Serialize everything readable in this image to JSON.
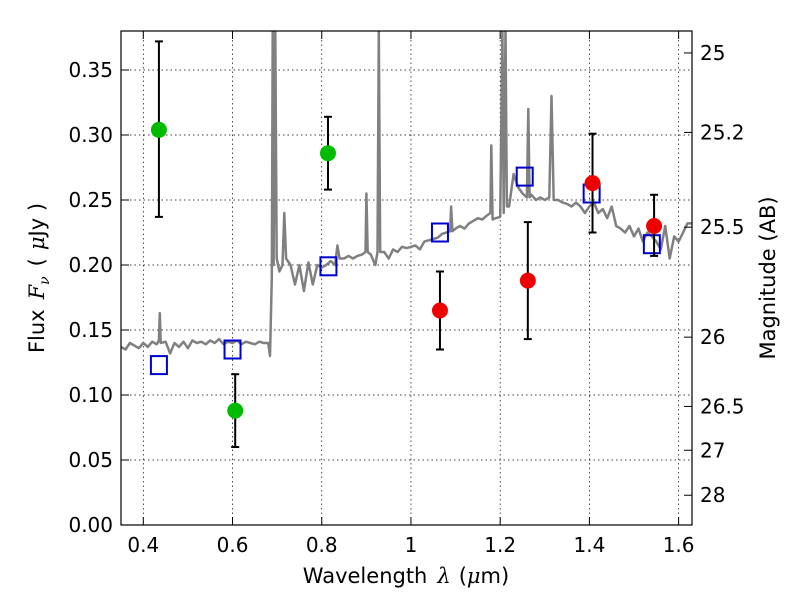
{
  "chart_data": {
    "type": "scatter",
    "title": "",
    "xlabel": {
      "prefix": "Wavelength",
      "math": "λ",
      "suffix": "(",
      "unit_math": "μ",
      "unit": "m)"
    },
    "ylabel": {
      "prefix": "Flux",
      "math": "F",
      "math_sub": "ν",
      "suffix": "(",
      "unit_math": "μ",
      "unit": "Jy )"
    },
    "y2label": "Magnitude (AB)",
    "xlim": [
      0.35,
      1.63
    ],
    "ylim": [
      0.0,
      0.38
    ],
    "grid": true,
    "grid_style": "dotted",
    "x_ticks": [
      0.4,
      0.6,
      0.8,
      1.0,
      1.2,
      1.4,
      1.6
    ],
    "x_tick_labels": [
      "0.4",
      "0.6",
      "0.8",
      "1",
      "1.2",
      "1.4",
      "1.6"
    ],
    "y_ticks": [
      0.0,
      0.05,
      0.1,
      0.15,
      0.2,
      0.25,
      0.3,
      0.35
    ],
    "y_tick_labels": [
      "0.00",
      "0.05",
      "0.10",
      "0.15",
      "0.20",
      "0.25",
      "0.30",
      "0.35"
    ],
    "y2_ticks": [
      {
        "label": "25",
        "flux": 0.3631
      },
      {
        "label": "25.2",
        "flux": 0.302
      },
      {
        "label": "25.5",
        "flux": 0.2291
      },
      {
        "label": "26",
        "flux": 0.1445
      },
      {
        "label": "26.5",
        "flux": 0.0912
      },
      {
        "label": "27",
        "flux": 0.0575
      },
      {
        "label": "28",
        "flux": 0.0229
      }
    ],
    "colors": {
      "spectrum": "#808080",
      "green": "#00bb00",
      "red": "#ee0000",
      "model_box": "#0000cc",
      "errorbar": "#000000"
    },
    "series": [
      {
        "marker": "square-open",
        "color": "#0000cc",
        "points": [
          {
            "x": 0.435,
            "y": 0.123
          },
          {
            "x": 0.6,
            "y": 0.135
          },
          {
            "x": 0.815,
            "y": 0.199
          },
          {
            "x": 1.065,
            "y": 0.225
          },
          {
            "x": 1.255,
            "y": 0.268
          },
          {
            "x": 1.405,
            "y": 0.255
          },
          {
            "x": 1.54,
            "y": 0.216
          }
        ]
      },
      {
        "marker": "circle",
        "color": "#00bb00",
        "points": [
          {
            "x": 0.435,
            "y": 0.304,
            "err_low": 0.237,
            "err_high": 0.372
          },
          {
            "x": 0.606,
            "y": 0.088,
            "err_low": 0.06,
            "err_high": 0.116
          },
          {
            "x": 0.814,
            "y": 0.286,
            "err_low": 0.258,
            "err_high": 0.314
          }
        ]
      },
      {
        "marker": "circle",
        "color": "#ee0000",
        "points": [
          {
            "x": 1.065,
            "y": 0.165,
            "err_low": 0.135,
            "err_high": 0.195
          },
          {
            "x": 1.262,
            "y": 0.188,
            "err_low": 0.143,
            "err_high": 0.233
          },
          {
            "x": 1.407,
            "y": 0.263,
            "err_low": 0.225,
            "err_high": 0.301
          },
          {
            "x": 1.545,
            "y": 0.23,
            "err_low": 0.207,
            "err_high": 0.254
          }
        ]
      }
    ],
    "spectrum": [
      [
        0.35,
        0.137
      ],
      [
        0.36,
        0.135
      ],
      [
        0.37,
        0.14
      ],
      [
        0.38,
        0.138
      ],
      [
        0.39,
        0.136
      ],
      [
        0.4,
        0.14
      ],
      [
        0.41,
        0.137
      ],
      [
        0.42,
        0.141
      ],
      [
        0.43,
        0.139
      ],
      [
        0.435,
        0.142
      ],
      [
        0.437,
        0.163
      ],
      [
        0.439,
        0.14
      ],
      [
        0.45,
        0.141
      ],
      [
        0.46,
        0.132
      ],
      [
        0.47,
        0.14
      ],
      [
        0.48,
        0.137
      ],
      [
        0.49,
        0.141
      ],
      [
        0.5,
        0.136
      ],
      [
        0.51,
        0.142
      ],
      [
        0.52,
        0.14
      ],
      [
        0.53,
        0.141
      ],
      [
        0.54,
        0.139
      ],
      [
        0.55,
        0.142
      ],
      [
        0.56,
        0.14
      ],
      [
        0.57,
        0.143
      ],
      [
        0.58,
        0.139
      ],
      [
        0.59,
        0.141
      ],
      [
        0.6,
        0.14
      ],
      [
        0.61,
        0.142
      ],
      [
        0.62,
        0.139
      ],
      [
        0.63,
        0.141
      ],
      [
        0.64,
        0.14
      ],
      [
        0.65,
        0.139
      ],
      [
        0.66,
        0.141
      ],
      [
        0.67,
        0.14
      ],
      [
        0.68,
        0.14
      ],
      [
        0.684,
        0.13
      ],
      [
        0.688,
        0.19
      ],
      [
        0.69,
        0.38
      ],
      [
        0.692,
        0.2
      ],
      [
        0.696,
        0.38
      ],
      [
        0.699,
        0.205
      ],
      [
        0.705,
        0.195
      ],
      [
        0.712,
        0.2
      ],
      [
        0.716,
        0.24
      ],
      [
        0.72,
        0.205
      ],
      [
        0.73,
        0.2
      ],
      [
        0.74,
        0.185
      ],
      [
        0.75,
        0.2
      ],
      [
        0.76,
        0.18
      ],
      [
        0.77,
        0.202
      ],
      [
        0.78,
        0.185
      ],
      [
        0.79,
        0.2
      ],
      [
        0.8,
        0.198
      ],
      [
        0.81,
        0.2
      ],
      [
        0.82,
        0.203
      ],
      [
        0.83,
        0.2
      ],
      [
        0.835,
        0.215
      ],
      [
        0.84,
        0.205
      ],
      [
        0.85,
        0.205
      ],
      [
        0.86,
        0.207
      ],
      [
        0.87,
        0.205
      ],
      [
        0.88,
        0.207
      ],
      [
        0.89,
        0.208
      ],
      [
        0.898,
        0.21
      ],
      [
        0.9,
        0.255
      ],
      [
        0.903,
        0.21
      ],
      [
        0.91,
        0.208
      ],
      [
        0.92,
        0.2
      ],
      [
        0.925,
        0.21
      ],
      [
        0.928,
        0.38
      ],
      [
        0.931,
        0.21
      ],
      [
        0.94,
        0.21
      ],
      [
        0.95,
        0.205
      ],
      [
        0.96,
        0.212
      ],
      [
        0.97,
        0.21
      ],
      [
        0.98,
        0.214
      ],
      [
        0.99,
        0.213
      ],
      [
        1.0,
        0.214
      ],
      [
        1.01,
        0.215
      ],
      [
        1.02,
        0.212
      ],
      [
        1.03,
        0.218
      ],
      [
        1.04,
        0.219
      ],
      [
        1.05,
        0.22
      ],
      [
        1.06,
        0.221
      ],
      [
        1.07,
        0.224
      ],
      [
        1.08,
        0.225
      ],
      [
        1.088,
        0.226
      ],
      [
        1.09,
        0.245
      ],
      [
        1.093,
        0.226
      ],
      [
        1.1,
        0.228
      ],
      [
        1.11,
        0.23
      ],
      [
        1.12,
        0.228
      ],
      [
        1.13,
        0.232
      ],
      [
        1.14,
        0.234
      ],
      [
        1.15,
        0.236
      ],
      [
        1.16,
        0.235
      ],
      [
        1.17,
        0.238
      ],
      [
        1.178,
        0.24
      ],
      [
        1.18,
        0.292
      ],
      [
        1.183,
        0.235
      ],
      [
        1.19,
        0.236
      ],
      [
        1.2,
        0.237
      ],
      [
        1.205,
        0.38
      ],
      [
        1.208,
        0.24
      ],
      [
        1.212,
        0.38
      ],
      [
        1.215,
        0.245
      ],
      [
        1.22,
        0.245
      ],
      [
        1.23,
        0.27
      ],
      [
        1.24,
        0.26
      ],
      [
        1.25,
        0.255
      ],
      [
        1.26,
        0.252
      ],
      [
        1.263,
        0.32
      ],
      [
        1.266,
        0.252
      ],
      [
        1.27,
        0.254
      ],
      [
        1.28,
        0.25
      ],
      [
        1.29,
        0.252
      ],
      [
        1.3,
        0.25
      ],
      [
        1.31,
        0.252
      ],
      [
        1.315,
        0.33
      ],
      [
        1.32,
        0.25
      ],
      [
        1.33,
        0.25
      ],
      [
        1.34,
        0.248
      ],
      [
        1.35,
        0.247
      ],
      [
        1.36,
        0.245
      ],
      [
        1.37,
        0.248
      ],
      [
        1.38,
        0.245
      ],
      [
        1.39,
        0.24
      ],
      [
        1.4,
        0.245
      ],
      [
        1.41,
        0.248
      ],
      [
        1.42,
        0.24
      ],
      [
        1.43,
        0.243
      ],
      [
        1.44,
        0.236
      ],
      [
        1.45,
        0.245
      ],
      [
        1.46,
        0.23
      ],
      [
        1.47,
        0.228
      ],
      [
        1.48,
        0.225
      ],
      [
        1.49,
        0.23
      ],
      [
        1.5,
        0.222
      ],
      [
        1.51,
        0.228
      ],
      [
        1.52,
        0.218
      ],
      [
        1.53,
        0.225
      ],
      [
        1.54,
        0.222
      ],
      [
        1.55,
        0.218
      ],
      [
        1.56,
        0.212
      ],
      [
        1.57,
        0.23
      ],
      [
        1.58,
        0.205
      ],
      [
        1.59,
        0.222
      ],
      [
        1.6,
        0.218
      ],
      [
        1.61,
        0.225
      ],
      [
        1.62,
        0.232
      ],
      [
        1.63,
        0.232
      ]
    ]
  }
}
